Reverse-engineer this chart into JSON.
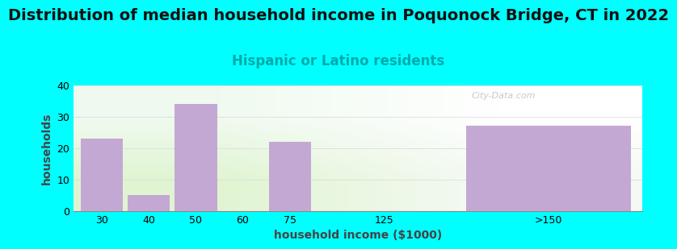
{
  "title": "Distribution of median household income in Poquonock Bridge, CT in 2022",
  "subtitle": "Hispanic or Latino residents",
  "xlabel": "household income ($1000)",
  "ylabel": "households",
  "categories": [
    "30",
    "40",
    "50",
    "60",
    "75",
    "125",
    ">150"
  ],
  "values": [
    23,
    5,
    34,
    0,
    22,
    0,
    27
  ],
  "bar_color": "#c4a8d4",
  "ylim": [
    0,
    40
  ],
  "yticks": [
    0,
    10,
    20,
    30,
    40
  ],
  "background_color": "#00FFFF",
  "title_fontsize": 14,
  "subtitle_fontsize": 12,
  "subtitle_color": "#00AAAA",
  "axis_label_fontsize": 10,
  "tick_fontsize": 9,
  "grid_color": "#dddddd",
  "watermark_text": "City-Data.com"
}
